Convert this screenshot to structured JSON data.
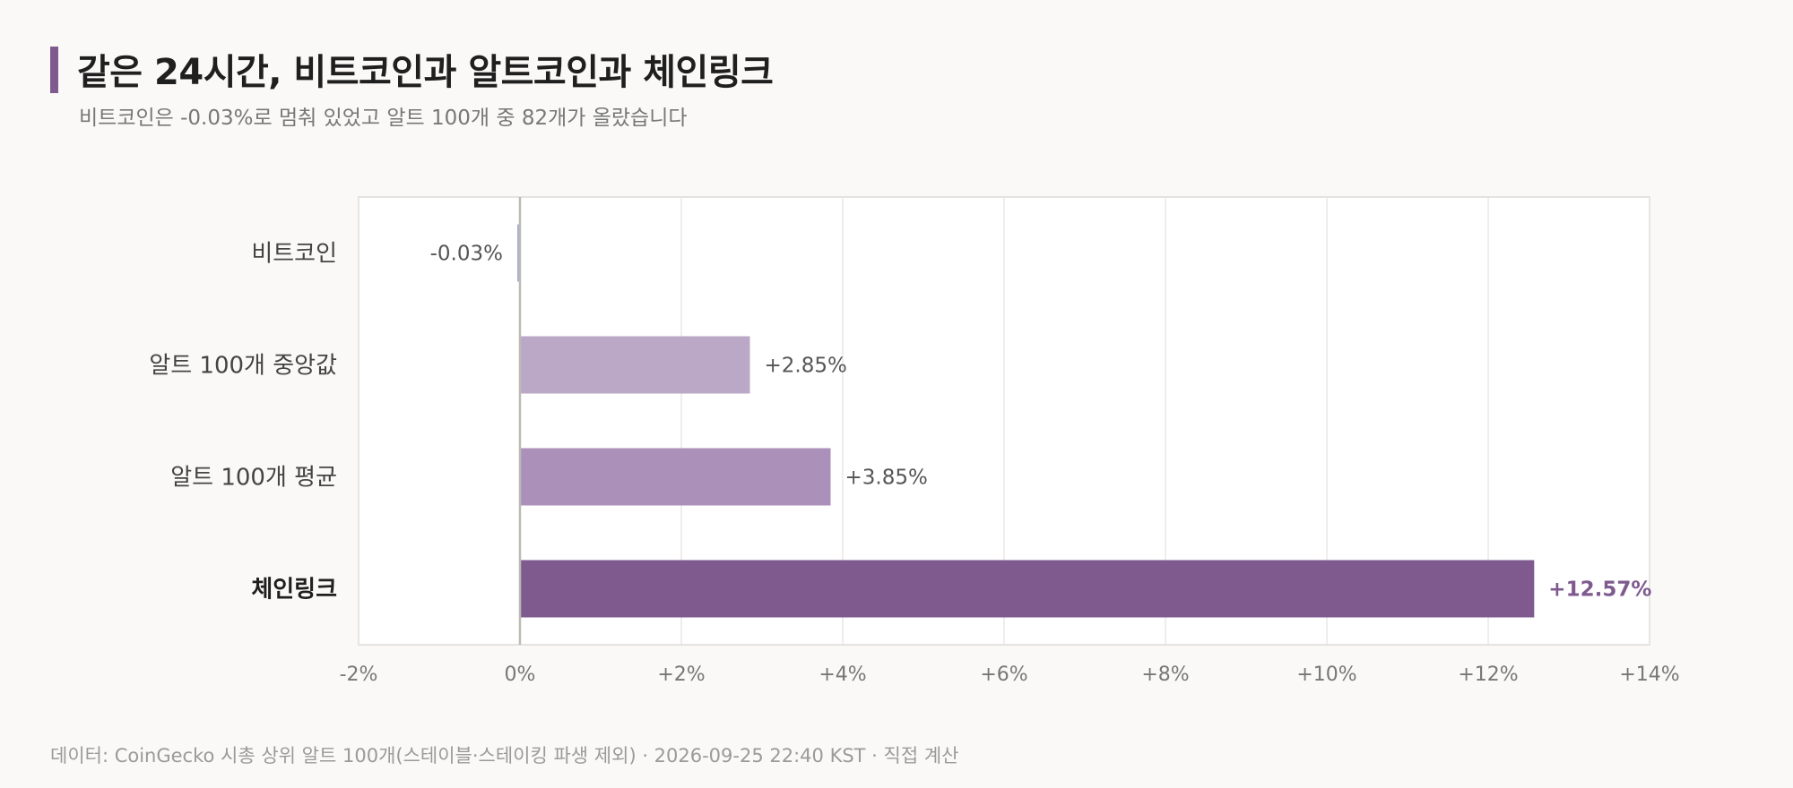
{
  "header": {
    "title": "같은 24시간, 비트코인과 알트코인과 체인링크",
    "subtitle": "비트코인은 -0.03%로 멈춰 있었고 알트 100개 중 82개가 올랐습니다"
  },
  "footer": {
    "source": "데이터: CoinGecko 시총 상위 알트 100개(스테이블·스테이킹 파생 제외) · 2026-09-25 22:40 KST · 직접 계산"
  },
  "colors": {
    "accent": "#7e5a8f",
    "bars": [
      "#a8aed0",
      "#bba8c6",
      "#ab91b9",
      "#7e5a8f"
    ],
    "grid": "#e4e2e0",
    "zero_line": "#bdbab6"
  },
  "chart_data": {
    "type": "bar",
    "orientation": "horizontal",
    "categories": [
      "비트코인",
      "알트 100개 중앙값",
      "알트 100개 평균",
      "체인링크"
    ],
    "values": [
      -0.03,
      2.85,
      3.85,
      12.57
    ],
    "value_labels": [
      "-0.03%",
      "+2.85%",
      "+3.85%",
      "+12.57%"
    ],
    "highlight_index": 3,
    "xlim": [
      -2,
      14
    ],
    "xticks": [
      -2,
      0,
      2,
      4,
      6,
      8,
      10,
      12,
      14
    ],
    "xtick_labels": [
      "-2%",
      "0%",
      "+2%",
      "+4%",
      "+6%",
      "+8%",
      "+10%",
      "+12%",
      "+14%"
    ],
    "grid": true
  }
}
